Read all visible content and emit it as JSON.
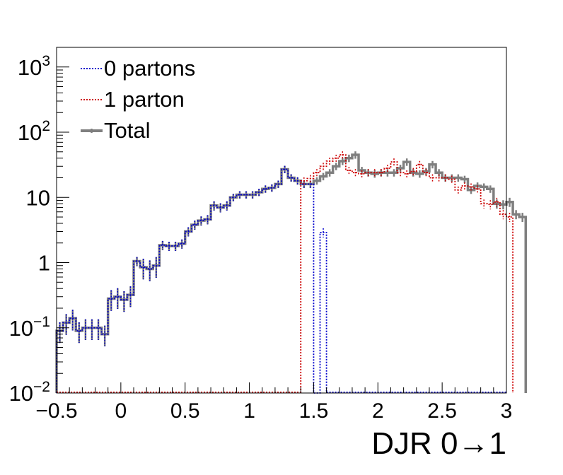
{
  "chart_data": {
    "type": "line",
    "xlabel": "DJR 0→1",
    "ylabel": "",
    "xlim": [
      -0.5,
      3.0
    ],
    "ylim": [
      0.01,
      2000
    ],
    "yscale": "log",
    "grid": false,
    "legend_position": "top-left",
    "x_ticks": [
      {
        "value": -0.5,
        "label": "−0.5"
      },
      {
        "value": 0,
        "label": "0"
      },
      {
        "value": 0.5,
        "label": "0.5"
      },
      {
        "value": 1,
        "label": "1"
      },
      {
        "value": 1.5,
        "label": "1.5"
      },
      {
        "value": 2,
        "label": "2"
      },
      {
        "value": 2.5,
        "label": "2.5"
      },
      {
        "value": 3,
        "label": "3"
      }
    ],
    "y_ticks": [
      {
        "value": 0.01,
        "base": "10",
        "exp": "−2",
        "label": ""
      },
      {
        "value": 0.1,
        "base": "10",
        "exp": "−1",
        "label": ""
      },
      {
        "value": 1,
        "base": "",
        "exp": "",
        "label": "1"
      },
      {
        "value": 10,
        "base": "",
        "exp": "",
        "label": "10"
      },
      {
        "value": 100,
        "base": "10",
        "exp": "2",
        "label": ""
      },
      {
        "value": 1000,
        "base": "10",
        "exp": "3",
        "label": ""
      }
    ],
    "series": [
      {
        "name": "0 partons",
        "color": "#0000cc",
        "style": "dotted",
        "x0": -0.5,
        "bin_width": 0.05,
        "values": [
          0.09,
          0.12,
          0.14,
          0.09,
          0.1,
          0.1,
          0.1,
          0.08,
          0.28,
          0.3,
          0.27,
          0.32,
          1.05,
          0.85,
          0.8,
          0.9,
          1.85,
          1.8,
          1.8,
          1.95,
          3.0,
          3.8,
          4.4,
          4.6,
          7.5,
          7.0,
          7.5,
          10.0,
          11.0,
          11.0,
          11.0,
          12.0,
          13.5,
          14.0,
          16.0,
          27.0,
          20.0,
          18.0,
          16.0,
          16.0,
          0.0001,
          2.9
        ]
      },
      {
        "name": "1 parton",
        "color": "#cc0000",
        "style": "dotted",
        "x0": 1.4,
        "bin_width": 0.05,
        "values": [
          18.0,
          19.5,
          24.0,
          30.0,
          36.0,
          40.0,
          45.0,
          26.0,
          24.0,
          23.0,
          24.0,
          24.0,
          24.0,
          28.0,
          35.0,
          24.0,
          23.0,
          25.0,
          32.0,
          24.0,
          20.0,
          20.0,
          20.0,
          19.0,
          13.0,
          15.0,
          14.5,
          13.5,
          8.0,
          7.8,
          8.5,
          5.5,
          5.0
        ]
      },
      {
        "name": "Total",
        "color": "#7f7f7f",
        "style": "solid",
        "x0": -0.5,
        "bin_width": 0.05,
        "values": [
          0.09,
          0.12,
          0.14,
          0.09,
          0.1,
          0.1,
          0.1,
          0.08,
          0.28,
          0.3,
          0.27,
          0.32,
          1.05,
          0.85,
          0.8,
          0.9,
          1.85,
          1.8,
          1.8,
          1.95,
          3.0,
          3.8,
          4.4,
          4.6,
          7.5,
          7.0,
          7.5,
          10.0,
          11.0,
          11.0,
          11.0,
          12.0,
          13.5,
          14.0,
          16.0,
          27.0,
          20.0,
          18.0,
          16.0,
          16.0,
          18.0,
          21.0,
          24.0,
          30.0,
          36.0,
          40.0,
          45.0,
          26.0,
          24.0,
          23.0,
          24.0,
          24.0,
          24.0,
          28.0,
          35.0,
          24.0,
          23.0,
          25.0,
          32.0,
          24.0,
          20.0,
          20.0,
          20.0,
          19.0,
          13.0,
          15.0,
          14.5,
          13.5,
          8.0,
          7.8,
          8.5,
          5.5,
          5.0
        ]
      }
    ]
  }
}
